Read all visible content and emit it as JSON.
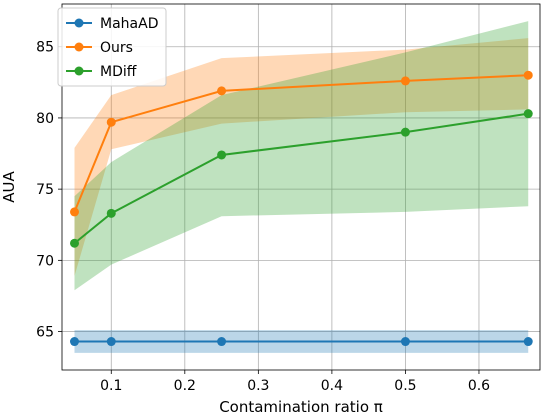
{
  "chart_data": {
    "type": "line",
    "xlabel": "Contamination ratio π",
    "ylabel": "AUA",
    "xlim": [
      0.033,
      0.683
    ],
    "ylim": [
      62.3,
      88.0
    ],
    "xticks": [
      0.1,
      0.2,
      0.3,
      0.4,
      0.5,
      0.6
    ],
    "yticks": [
      65,
      70,
      75,
      80,
      85
    ],
    "grid": true,
    "legend_position": "top-left",
    "x": [
      0.05,
      0.1,
      0.25,
      0.5,
      0.667
    ],
    "series": [
      {
        "name": "MahaAD",
        "color": "#1f77b4",
        "values": [
          64.3,
          64.3,
          64.3,
          64.3,
          64.3
        ],
        "band_lower": [
          63.5,
          63.5,
          63.5,
          63.5,
          63.5
        ],
        "band_upper": [
          65.1,
          65.1,
          65.1,
          65.1,
          65.1
        ]
      },
      {
        "name": "Ours",
        "color": "#ff7f0e",
        "values": [
          73.4,
          79.7,
          81.9,
          82.6,
          83.0
        ],
        "band_lower": [
          68.9,
          77.8,
          79.6,
          80.4,
          80.6
        ],
        "band_upper": [
          77.9,
          81.6,
          84.2,
          84.8,
          85.6
        ]
      },
      {
        "name": "MDiff",
        "color": "#2ca02c",
        "values": [
          71.2,
          73.3,
          77.4,
          79.0,
          80.3
        ],
        "band_lower": [
          67.9,
          69.7,
          73.1,
          73.4,
          73.8
        ],
        "band_upper": [
          74.5,
          76.9,
          81.6,
          84.6,
          86.8
        ]
      }
    ]
  }
}
